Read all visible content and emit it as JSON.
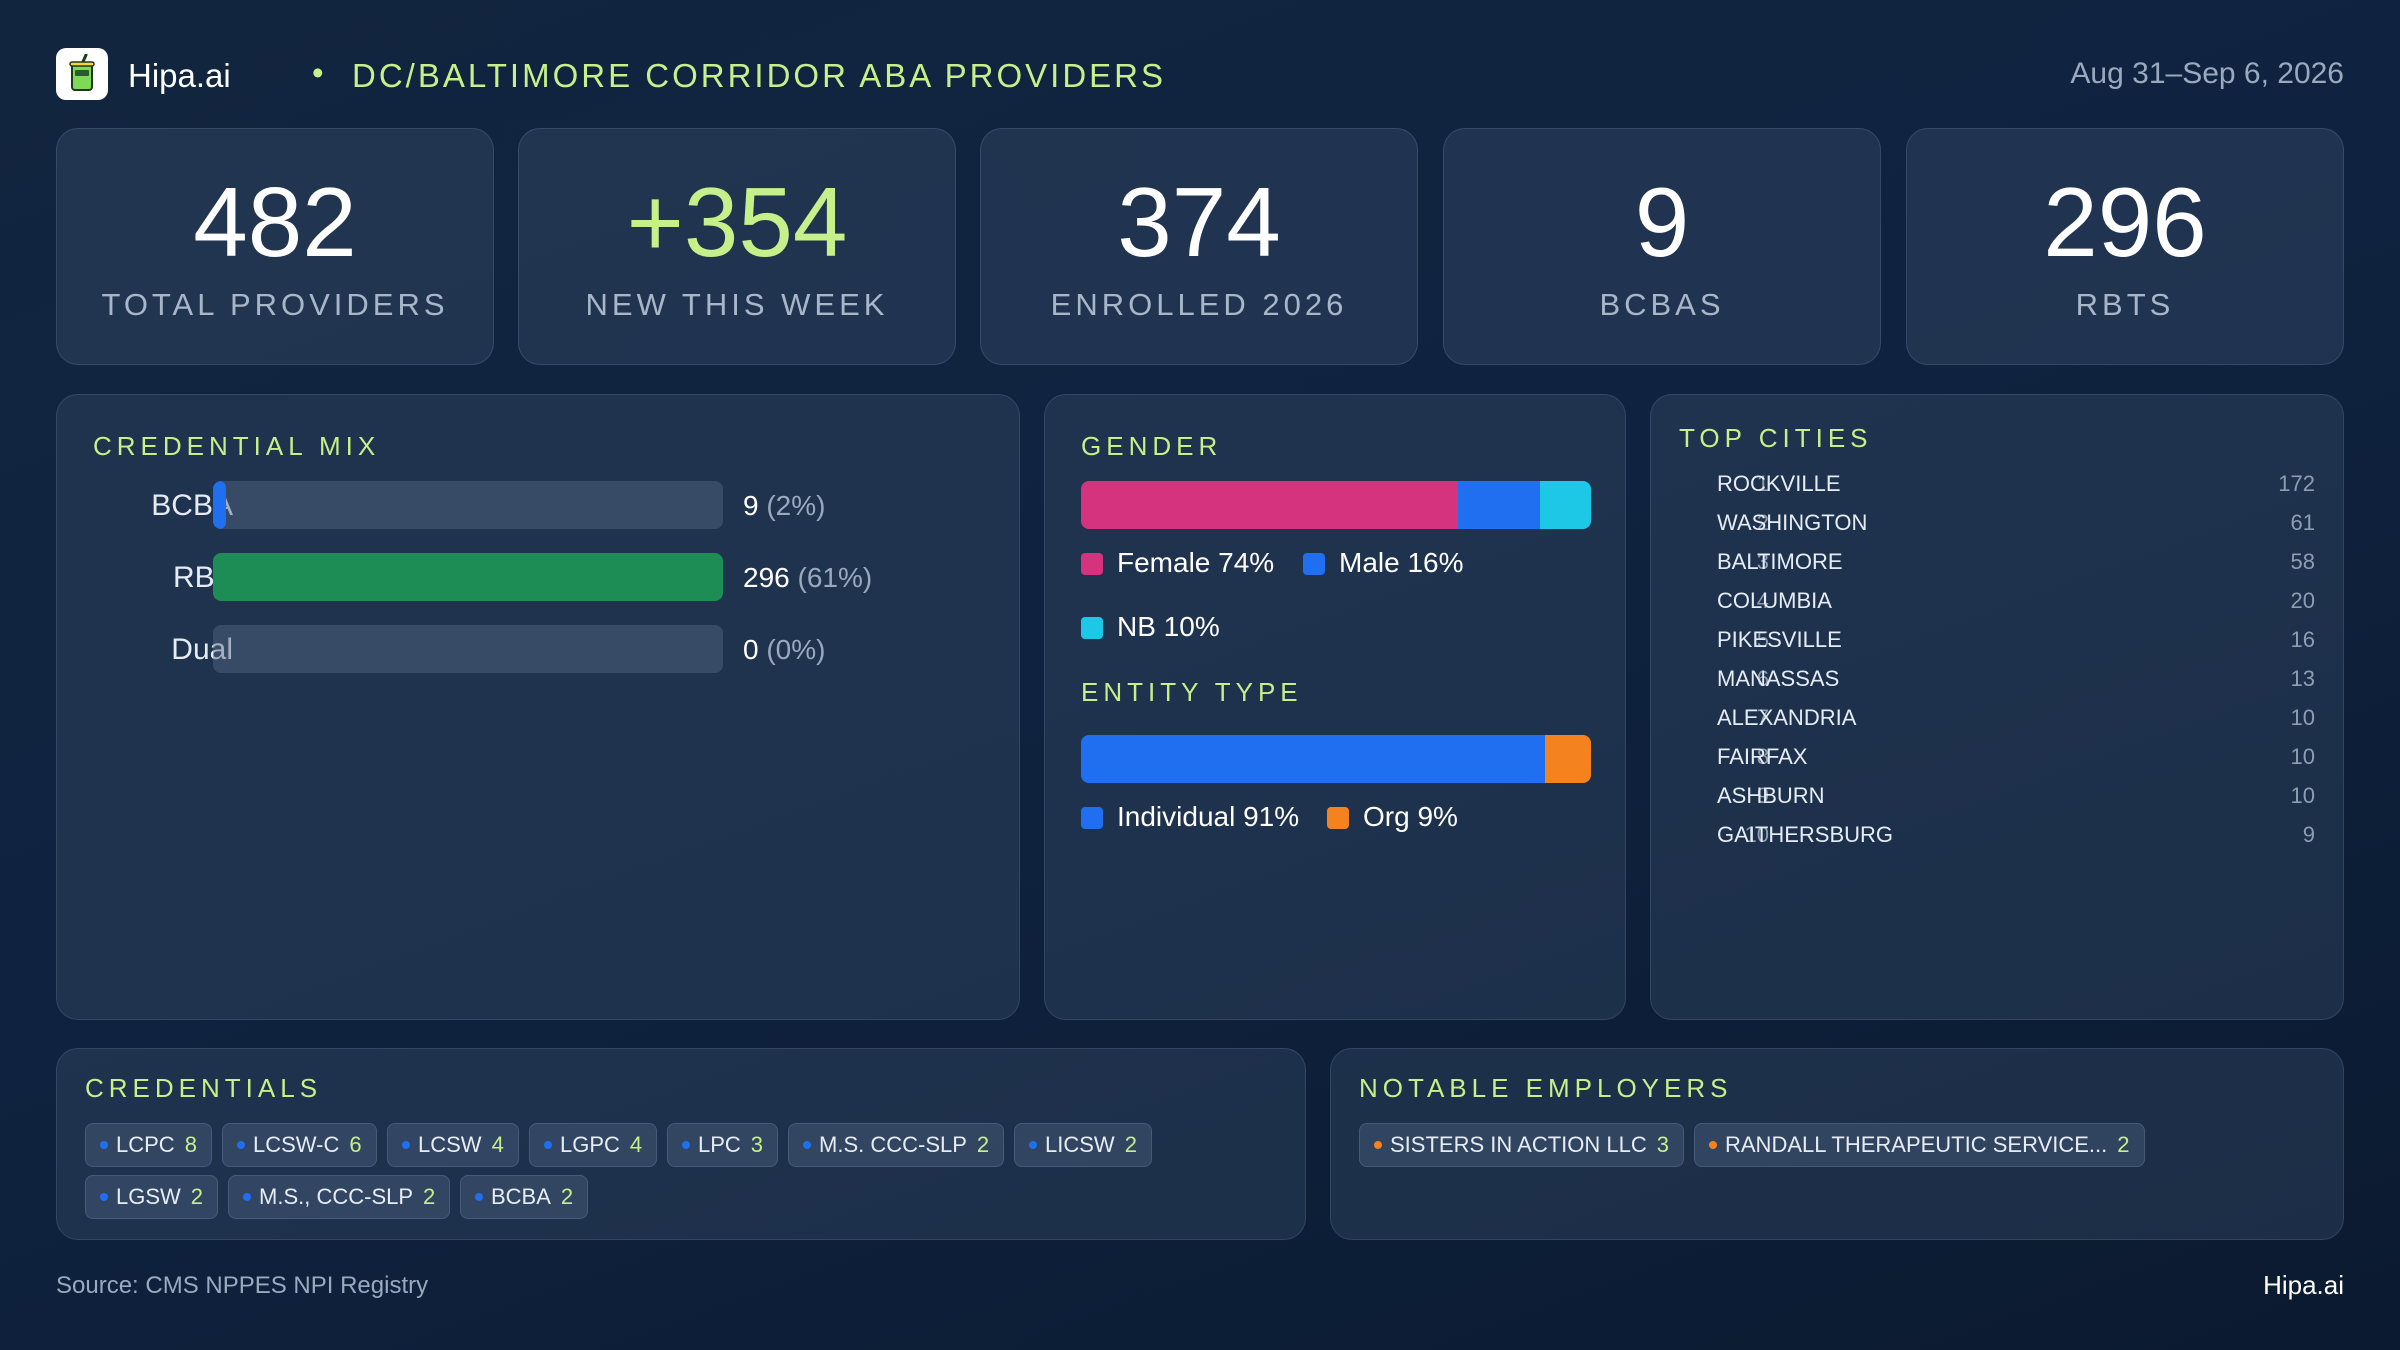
{
  "header": {
    "brand": "Hipa.ai",
    "separator": "•",
    "title": "DC/BALTIMORE CORRIDOR ABA PROVIDERS",
    "date_range": "Aug 31–Sep 6, 2026"
  },
  "kpis": [
    {
      "value": "482",
      "label": "TOTAL PROVIDERS"
    },
    {
      "value": "+354",
      "label": "NEW THIS WEEK"
    },
    {
      "value": "374",
      "label": "ENROLLED 2026"
    },
    {
      "value": "9",
      "label": "BCBAS"
    },
    {
      "value": "296",
      "label": "RBTS"
    }
  ],
  "credential_mix": {
    "title": "CREDENTIAL MIX",
    "rows": [
      {
        "label": "BCBA",
        "count": "9",
        "pct": "(2%)",
        "fraction": 0.02,
        "color": "#1f6ff0"
      },
      {
        "label": "RBT",
        "count": "296",
        "pct": "(61%)",
        "fraction": 1.0,
        "color": "#1e8c55"
      },
      {
        "label": "Dual",
        "count": "0",
        "pct": "(0%)",
        "fraction": 0.0,
        "color": "#1f6ff0"
      }
    ]
  },
  "gender": {
    "title": "GENDER",
    "segments": [
      {
        "label": "Female 74%",
        "percent": 74,
        "color": "#d6337f"
      },
      {
        "label": "Male 16%",
        "percent": 16,
        "color": "#1f6ff0"
      },
      {
        "label": "NB 10%",
        "percent": 10,
        "color": "#1cc8e6"
      }
    ]
  },
  "entity_type": {
    "title": "ENTITY TYPE",
    "segments": [
      {
        "label": "Individual 91%",
        "percent": 91,
        "color": "#1f6ff0"
      },
      {
        "label": "Org 9%",
        "percent": 9,
        "color": "#f4821f"
      }
    ]
  },
  "top_cities": {
    "title": "TOP CITIES",
    "items": [
      {
        "rank": "1",
        "name": "ROCKVILLE",
        "count": "172"
      },
      {
        "rank": "2",
        "name": "WASHINGTON",
        "count": "61"
      },
      {
        "rank": "3",
        "name": "BALTIMORE",
        "count": "58"
      },
      {
        "rank": "4",
        "name": "COLUMBIA",
        "count": "20"
      },
      {
        "rank": "5",
        "name": "PIKESVILLE",
        "count": "16"
      },
      {
        "rank": "6",
        "name": "MANASSAS",
        "count": "13"
      },
      {
        "rank": "7",
        "name": "ALEXANDRIA",
        "count": "10"
      },
      {
        "rank": "8",
        "name": "FAIRFAX",
        "count": "10"
      },
      {
        "rank": "9",
        "name": "ASHBURN",
        "count": "10"
      },
      {
        "rank": "10",
        "name": "GAITHERSBURG",
        "count": "9"
      }
    ]
  },
  "credentials": {
    "title": "CREDENTIALS",
    "bullet_color": "#1f6ff0",
    "chips": [
      {
        "label": "LCPC",
        "count": "8"
      },
      {
        "label": "LCSW-C",
        "count": "6"
      },
      {
        "label": "LCSW",
        "count": "4"
      },
      {
        "label": "LGPC",
        "count": "4"
      },
      {
        "label": "LPC",
        "count": "3"
      },
      {
        "label": "M.S. CCC-SLP",
        "count": "2"
      },
      {
        "label": "LICSW",
        "count": "2"
      },
      {
        "label": "LGSW",
        "count": "2"
      },
      {
        "label": "M.S., CCC-SLP",
        "count": "2"
      },
      {
        "label": "BCBA",
        "count": "2"
      }
    ]
  },
  "notable_employers": {
    "title": "NOTABLE EMPLOYERS",
    "bullet_color": "#f4821f",
    "chips": [
      {
        "label": "SISTERS IN ACTION LLC",
        "count": "3"
      },
      {
        "label": "RANDALL THERAPEUTIC SERVICE...",
        "count": "2"
      }
    ]
  },
  "footer": {
    "source": "Source: CMS NPPES NPI Registry",
    "brand": "Hipa.ai"
  }
}
